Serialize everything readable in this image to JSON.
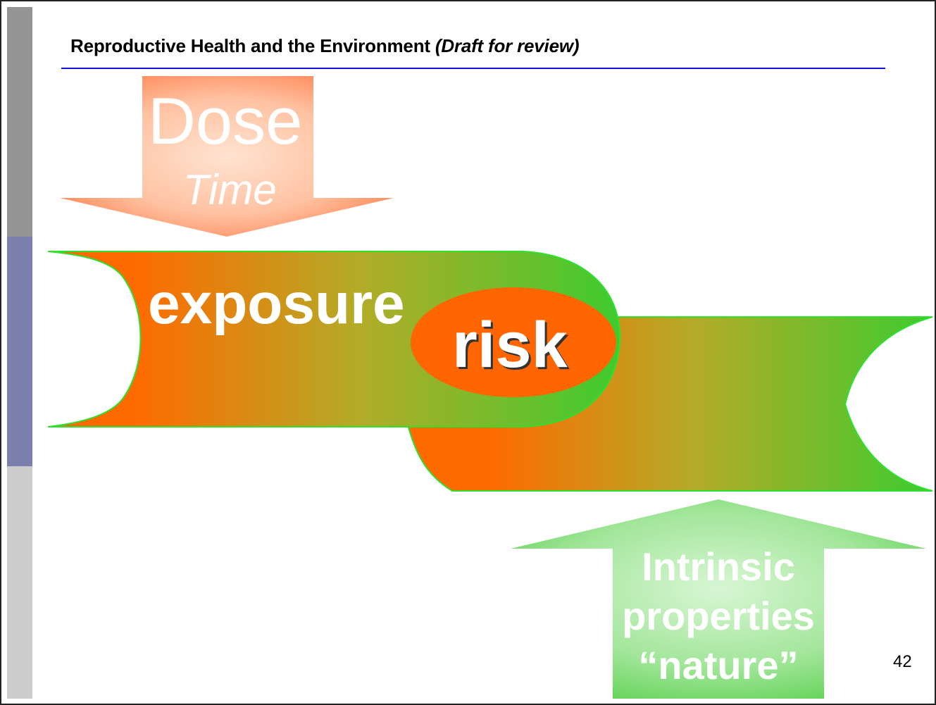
{
  "header": {
    "title": "Reproductive Health and the Environment",
    "draft_note": "(Draft for review)"
  },
  "diagram": {
    "dose_arrow": {
      "line1": "Dose",
      "line2": "Time"
    },
    "exposure_band": {
      "label": "exposure"
    },
    "risk": {
      "label": "risk"
    },
    "intrinsic_arrow": {
      "line1": "Intrinsic",
      "line2": "properties",
      "line3": "“nature”"
    }
  },
  "footer": {
    "page_number": "42"
  },
  "colors": {
    "orange": "#ff6a00",
    "green": "#3ecb2f",
    "header_rule": "#1010d8",
    "sidebar_top": "#949494",
    "sidebar_mid": "#7b7fab",
    "sidebar_bottom": "#cdcdcd"
  }
}
